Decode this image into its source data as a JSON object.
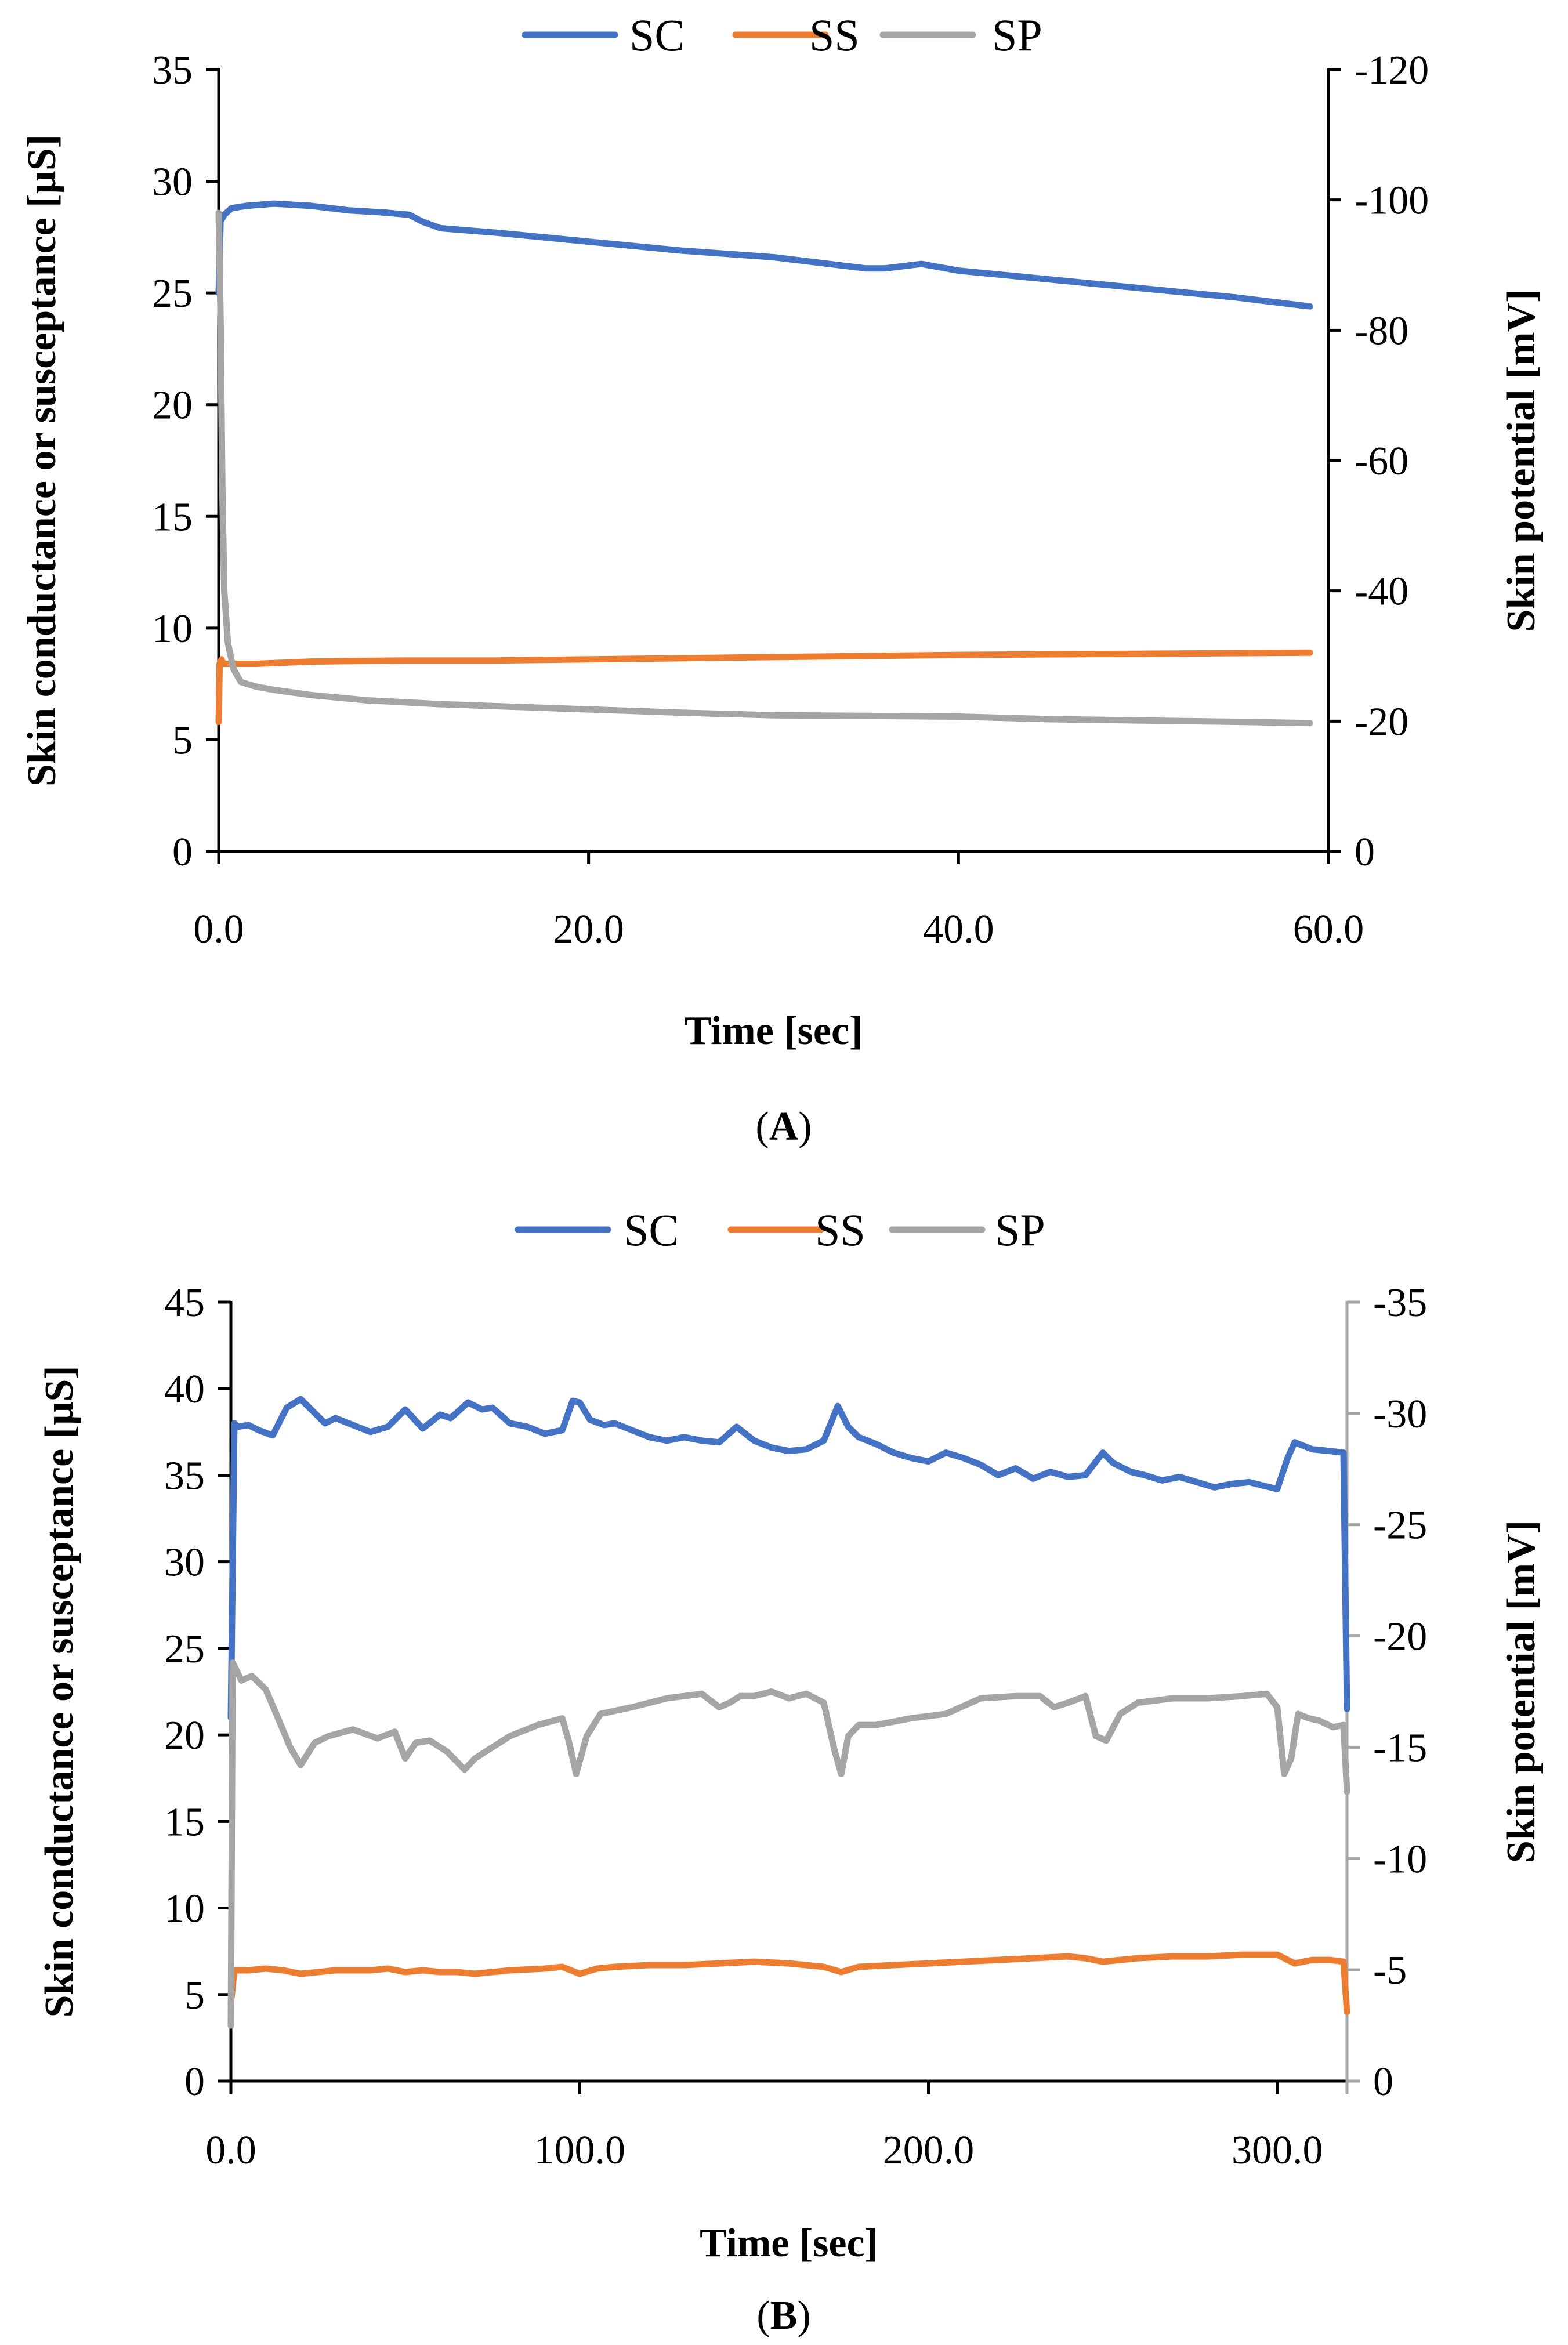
{
  "chart_data": [
    {
      "type": "line",
      "panel_label": "A",
      "legend": [
        "SC",
        "SS",
        "SP"
      ],
      "xlabel": "Time [sec]",
      "ylabel": "Skin conductance or susceptance [µS]",
      "y2label": "Skin potential [mV]",
      "xlim": [
        0,
        60
      ],
      "ylim": [
        0,
        35
      ],
      "y2lim": [
        0,
        -120
      ],
      "x_ticks": [
        "0.0",
        "20.0",
        "40.0",
        "60.0"
      ],
      "y_ticks": [
        "0",
        "5",
        "10",
        "15",
        "20",
        "25",
        "30",
        "35"
      ],
      "y2_ticks": [
        "0",
        "-20",
        "-40",
        "-60",
        "-80",
        "-100",
        "-120"
      ],
      "series": [
        {
          "name": "SC",
          "axis": "left",
          "color": "#4472C4",
          "x": [
            0,
            0.1,
            0.3,
            0.7,
            1.5,
            3,
            5,
            7,
            9,
            10.3,
            11,
            12,
            15,
            20,
            25,
            30,
            33,
            35,
            36,
            38,
            40,
            45,
            50,
            55,
            58,
            59
          ],
          "y": [
            25.0,
            28.2,
            28.5,
            28.8,
            28.9,
            29.0,
            28.9,
            28.7,
            28.6,
            28.5,
            28.2,
            27.9,
            27.7,
            27.3,
            26.9,
            26.6,
            26.3,
            26.1,
            26.1,
            26.3,
            26.0,
            25.6,
            25.2,
            24.8,
            24.5,
            24.4
          ]
        },
        {
          "name": "SS",
          "axis": "left",
          "color": "#ED7D31",
          "x": [
            0,
            0.05,
            0.15,
            0.25,
            0.5,
            1,
            2,
            5,
            10,
            15,
            20,
            30,
            40,
            50,
            59
          ],
          "y": [
            5.8,
            8.4,
            8.6,
            8.4,
            8.4,
            8.4,
            8.4,
            8.5,
            8.55,
            8.55,
            8.6,
            8.7,
            8.8,
            8.85,
            8.9
          ]
        },
        {
          "name": "SP",
          "axis": "right",
          "color": "#A5A5A5",
          "x": [
            0,
            0.1,
            0.2,
            0.3,
            0.5,
            0.8,
            1.2,
            2,
            3,
            5,
            8,
            12,
            16,
            20,
            25,
            30,
            35,
            40,
            45,
            50,
            55,
            59
          ],
          "y": [
            -98,
            -82,
            -55,
            -40,
            -32,
            -28,
            -26,
            -25.3,
            -24.8,
            -24,
            -23.2,
            -22.6,
            -22.2,
            -21.8,
            -21.3,
            -20.9,
            -20.8,
            -20.7,
            -20.3,
            -20.1,
            -19.9,
            -19.7
          ]
        }
      ]
    },
    {
      "type": "line",
      "panel_label": "B",
      "legend": [
        "SC",
        "SS",
        "SP"
      ],
      "xlabel": "Time [sec]",
      "ylabel": "Skin conductance or susceptance [µS]",
      "y2label": "Skin potential [mV]",
      "xlim": [
        0,
        320
      ],
      "ylim": [
        0,
        45
      ],
      "y2lim": [
        0,
        -35
      ],
      "x_ticks": [
        "0.0",
        "100.0",
        "200.0",
        "300.0"
      ],
      "y_ticks": [
        "0",
        "5",
        "10",
        "15",
        "20",
        "25",
        "30",
        "35",
        "40",
        "45"
      ],
      "y2_ticks": [
        "0",
        "-5",
        "-10",
        "-15",
        "-20",
        "-25",
        "-30",
        "-35"
      ],
      "series": [
        {
          "name": "SC",
          "axis": "left",
          "color": "#4472C4",
          "x": [
            0,
            1,
            2,
            5,
            8,
            12,
            16,
            20,
            23,
            27,
            30,
            35,
            40,
            45,
            50,
            55,
            60,
            63,
            68,
            72,
            75,
            80,
            85,
            90,
            95,
            98,
            100,
            103,
            107,
            110,
            115,
            120,
            125,
            130,
            135,
            140,
            145,
            150,
            155,
            160,
            165,
            170,
            174,
            177,
            180,
            185,
            190,
            195,
            200,
            205,
            210,
            215,
            220,
            225,
            230,
            235,
            240,
            245,
            250,
            253,
            258,
            262,
            267,
            272,
            277,
            282,
            287,
            292,
            296,
            300,
            303,
            305,
            310,
            315,
            319,
            320
          ],
          "y": [
            21.0,
            38.0,
            37.8,
            37.9,
            37.6,
            37.3,
            38.9,
            39.4,
            38.8,
            38.0,
            38.3,
            37.9,
            37.5,
            37.8,
            38.8,
            37.7,
            38.5,
            38.3,
            39.2,
            38.8,
            38.9,
            38.0,
            37.8,
            37.4,
            37.6,
            39.3,
            39.2,
            38.2,
            37.9,
            38.0,
            37.6,
            37.2,
            37.0,
            37.2,
            37.0,
            36.9,
            37.8,
            37.0,
            36.6,
            36.4,
            36.5,
            37.0,
            39.0,
            37.8,
            37.2,
            36.8,
            36.3,
            36.0,
            35.8,
            36.3,
            36.0,
            35.6,
            35.0,
            35.4,
            34.8,
            35.2,
            34.9,
            35.0,
            36.3,
            35.7,
            35.2,
            35.0,
            34.7,
            34.9,
            34.6,
            34.3,
            34.5,
            34.6,
            34.4,
            34.2,
            36.0,
            36.9,
            36.5,
            36.4,
            36.3,
            21.5
          ]
        },
        {
          "name": "SS",
          "axis": "left",
          "color": "#ED7D31",
          "x": [
            0,
            1,
            2,
            5,
            10,
            15,
            20,
            25,
            30,
            35,
            40,
            45,
            50,
            55,
            60,
            65,
            70,
            80,
            90,
            95,
            100,
            105,
            110,
            120,
            130,
            140,
            150,
            160,
            170,
            175,
            180,
            190,
            200,
            210,
            220,
            230,
            240,
            245,
            250,
            260,
            270,
            280,
            290,
            300,
            305,
            310,
            315,
            319,
            320
          ],
          "y": [
            4.5,
            6.4,
            6.4,
            6.4,
            6.5,
            6.4,
            6.2,
            6.3,
            6.4,
            6.4,
            6.4,
            6.5,
            6.3,
            6.4,
            6.3,
            6.3,
            6.2,
            6.4,
            6.5,
            6.6,
            6.2,
            6.5,
            6.6,
            6.7,
            6.7,
            6.8,
            6.9,
            6.8,
            6.6,
            6.3,
            6.6,
            6.7,
            6.8,
            6.9,
            7.0,
            7.1,
            7.2,
            7.1,
            6.9,
            7.1,
            7.2,
            7.2,
            7.3,
            7.3,
            6.8,
            7.0,
            7.0,
            6.9,
            4.0
          ]
        },
        {
          "name": "SP",
          "axis": "right",
          "color": "#A5A5A5",
          "x": [
            0,
            0.5,
            1.5,
            3,
            6,
            10,
            13,
            17,
            20,
            24,
            28,
            35,
            42,
            47,
            50,
            53,
            57,
            62,
            67,
            70,
            75,
            80,
            88,
            95,
            97,
            99,
            102,
            106,
            115,
            125,
            135,
            140,
            143,
            146,
            150,
            155,
            160,
            165,
            170,
            173,
            175,
            177,
            180,
            185,
            195,
            205,
            215,
            225,
            232,
            236,
            240,
            245,
            248,
            251,
            255,
            260,
            270,
            280,
            290,
            297,
            300,
            302,
            304,
            306,
            309,
            312,
            316,
            319,
            320
          ],
          "y": [
            -2.5,
            -18.8,
            -18.5,
            -18.0,
            -18.2,
            -17.6,
            -16.5,
            -15.0,
            -14.2,
            -15.2,
            -15.5,
            -15.8,
            -15.4,
            -15.7,
            -14.5,
            -15.2,
            -15.3,
            -14.8,
            -14.0,
            -14.5,
            -15.0,
            -15.5,
            -16.0,
            -16.3,
            -15.2,
            -13.8,
            -15.5,
            -16.5,
            -16.8,
            -17.2,
            -17.4,
            -16.8,
            -17.0,
            -17.3,
            -17.3,
            -17.5,
            -17.2,
            -17.4,
            -17.0,
            -14.9,
            -13.8,
            -15.5,
            -16.0,
            -16.0,
            -16.3,
            -16.5,
            -17.2,
            -17.3,
            -17.3,
            -16.8,
            -17.0,
            -17.3,
            -15.5,
            -15.3,
            -16.5,
            -17.0,
            -17.2,
            -17.2,
            -17.3,
            -17.4,
            -16.8,
            -13.8,
            -14.5,
            -16.5,
            -16.3,
            -16.2,
            -15.9,
            -16.0,
            -13.0
          ]
        }
      ]
    }
  ]
}
